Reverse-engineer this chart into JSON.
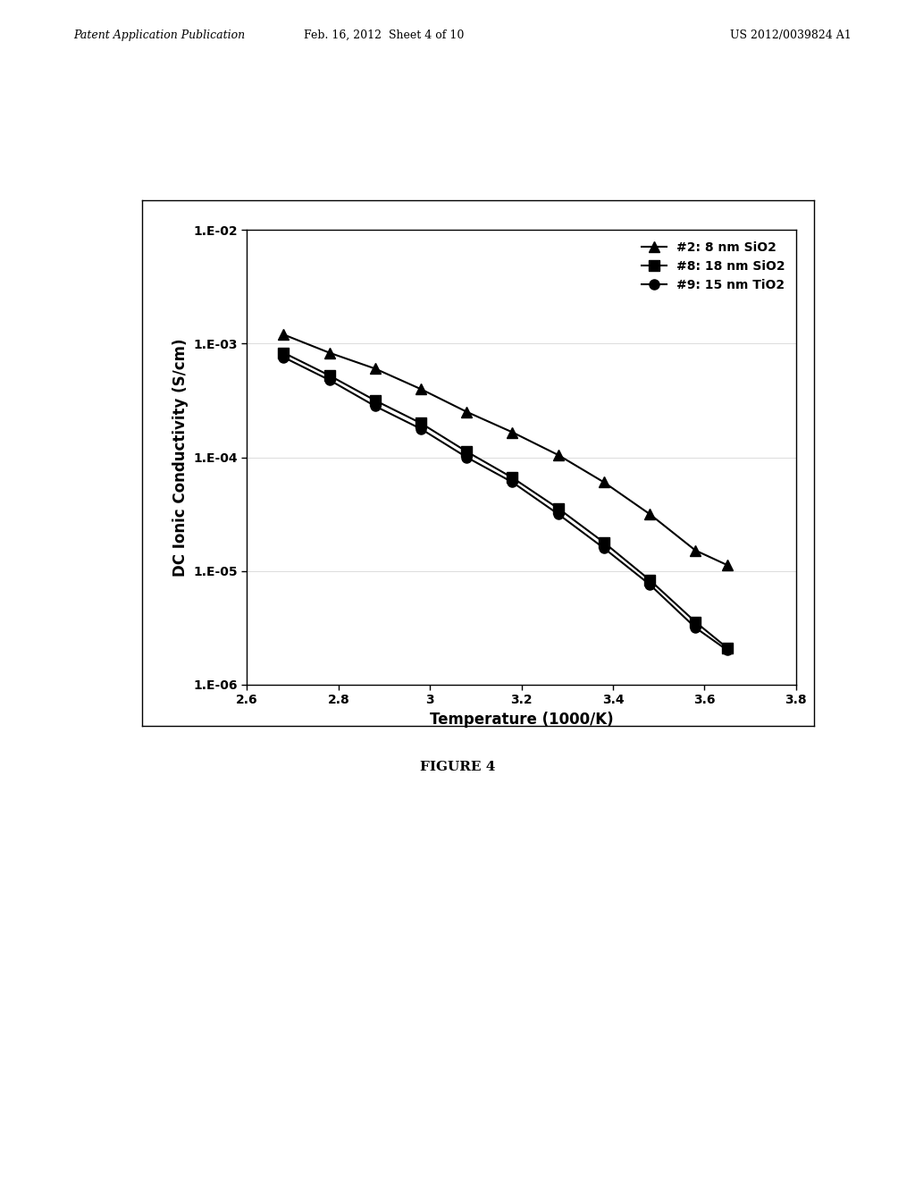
{
  "title": "",
  "xlabel": "Temperature (1000/K)",
  "ylabel": "DC Ionic Conductivity (S/cm)",
  "xlim": [
    2.6,
    3.8
  ],
  "x_ticks": [
    2.6,
    2.8,
    3.0,
    3.2,
    3.4,
    3.6,
    3.8
  ],
  "x_tick_labels": [
    "2.6",
    "2.8",
    "3",
    "3.2",
    "3.4",
    "3.6",
    "3.8"
  ],
  "y_tick_labels": [
    "1.E-06",
    "1.E-05",
    "1.E-04",
    "1.E-03",
    "1.E-02"
  ],
  "series": [
    {
      "label": "#2: 8 nm SiO2",
      "marker": "^",
      "color": "#000000",
      "x": [
        2.68,
        2.78,
        2.88,
        2.98,
        3.08,
        3.18,
        3.28,
        3.38,
        3.48,
        3.58,
        3.65
      ],
      "y_log10": [
        -2.92,
        -3.08,
        -3.22,
        -3.4,
        -3.6,
        -3.78,
        -3.98,
        -4.22,
        -4.5,
        -4.82,
        -4.95
      ]
    },
    {
      "label": "#8: 18 nm SiO2",
      "marker": "s",
      "color": "#000000",
      "x": [
        2.68,
        2.78,
        2.88,
        2.98,
        3.08,
        3.18,
        3.28,
        3.38,
        3.48,
        3.58,
        3.65
      ],
      "y_log10": [
        -3.08,
        -3.28,
        -3.5,
        -3.7,
        -3.95,
        -4.18,
        -4.45,
        -4.75,
        -5.08,
        -5.45,
        -5.68
      ]
    },
    {
      "label": "#9: 15 nm TiO2",
      "marker": "o",
      "color": "#000000",
      "x": [
        2.68,
        2.78,
        2.88,
        2.98,
        3.08,
        3.18,
        3.28,
        3.38,
        3.48,
        3.58,
        3.65
      ],
      "y_log10": [
        -3.12,
        -3.32,
        -3.55,
        -3.75,
        -4.0,
        -4.22,
        -4.5,
        -4.8,
        -5.12,
        -5.5,
        -5.7
      ]
    }
  ],
  "figure_caption": "FIGURE 4",
  "header_left": "Patent Application Publication",
  "header_center": "Feb. 16, 2012  Sheet 4 of 10",
  "header_right": "US 2012/0039824 A1",
  "background_color": "#ffffff",
  "plot_bg_color": "#ffffff",
  "border_color": "#000000",
  "markersize": 8,
  "linewidth": 1.5,
  "fontsize_axis_label": 12,
  "fontsize_tick": 10,
  "fontsize_legend": 10,
  "fontsize_caption": 11,
  "fontsize_header": 9
}
